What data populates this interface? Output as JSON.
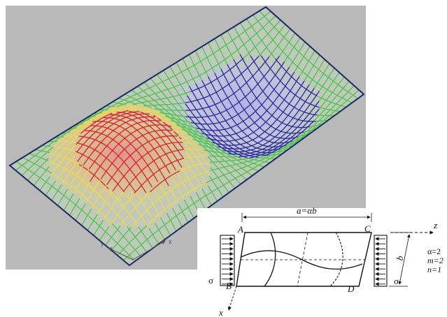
{
  "render": {
    "background": "#b9b9b9",
    "grid_colors": {
      "peak": "#e0202a",
      "mid": "#f0d84a",
      "flat": "#4cc64a",
      "trough": "#2a2aa8"
    },
    "edge_color": "#1a2a6a"
  },
  "render_axes": {
    "y_label": "y",
    "x_label": "x"
  },
  "schematic": {
    "dimension_top": "a=αb",
    "dimension_side": "b",
    "corners": {
      "A": "A",
      "B": "B",
      "C": "C",
      "D": "D"
    },
    "stress_left": "σ",
    "stress_right": "σ",
    "axis_z": "z",
    "axis_x": "x",
    "params": [
      "α=2",
      "m=2",
      "n=1"
    ]
  }
}
